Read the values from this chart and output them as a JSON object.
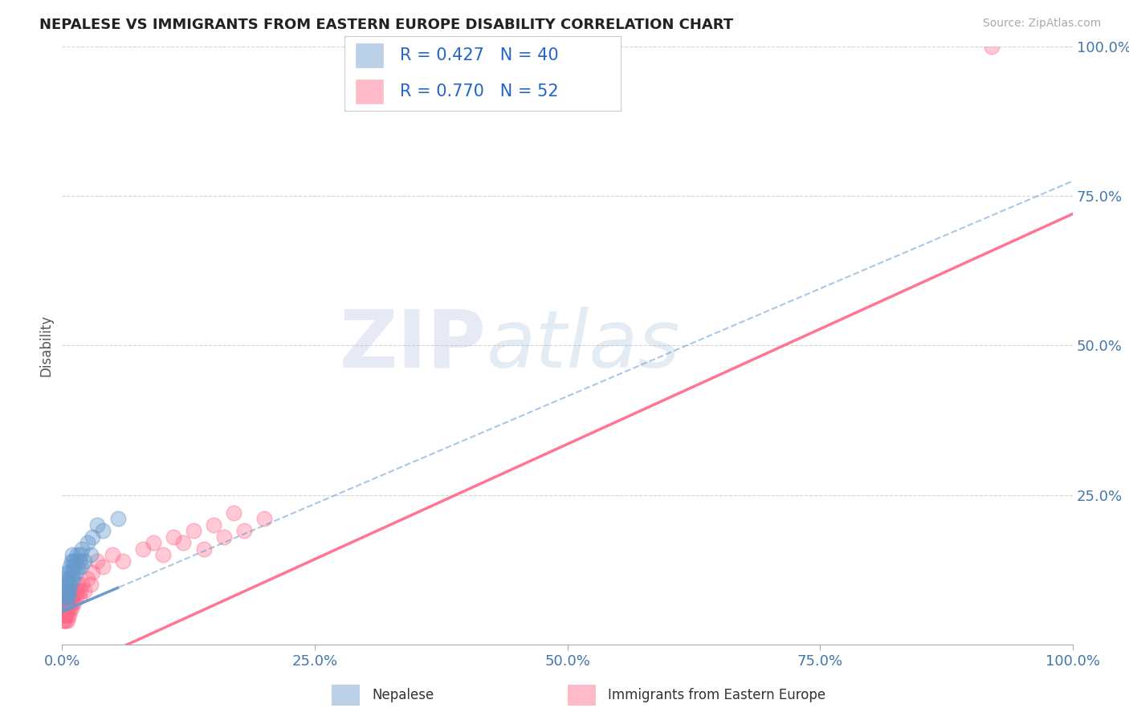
{
  "title": "NEPALESE VS IMMIGRANTS FROM EASTERN EUROPE DISABILITY CORRELATION CHART",
  "source": "Source: ZipAtlas.com",
  "ylabel": "Disability",
  "xlim": [
    0,
    1.0
  ],
  "ylim": [
    0,
    1.0
  ],
  "xticks": [
    0.0,
    0.25,
    0.5,
    0.75,
    1.0
  ],
  "xtick_labels": [
    "0.0%",
    "25.0%",
    "50.0%",
    "75.0%",
    "100.0%"
  ],
  "yticks": [
    0.25,
    0.5,
    0.75,
    1.0
  ],
  "ytick_labels": [
    "25.0%",
    "50.0%",
    "75.0%",
    "100.0%"
  ],
  "nepalese_color": "#6699CC",
  "eastern_europe_color": "#FF6688",
  "nepalese_R": 0.427,
  "nepalese_N": 40,
  "eastern_europe_R": 0.77,
  "eastern_europe_N": 52,
  "legend_label_nepalese": "Nepalese",
  "legend_label_eastern": "Immigrants from Eastern Europe",
  "watermark_zip": "ZIP",
  "watermark_atlas": "atlas",
  "background_color": "#ffffff",
  "grid_color": "#cccccc",
  "title_color": "#222222",
  "axis_tick_color": "#4477AA",
  "neo_line_slope": 0.72,
  "neo_line_intercept": 0.055,
  "east_line_slope": 0.77,
  "east_line_intercept": -0.05,
  "nepalese_x": [
    0.002,
    0.003,
    0.003,
    0.004,
    0.004,
    0.004,
    0.005,
    0.005,
    0.005,
    0.005,
    0.005,
    0.006,
    0.006,
    0.006,
    0.007,
    0.007,
    0.008,
    0.008,
    0.009,
    0.009,
    0.01,
    0.01,
    0.011,
    0.011,
    0.012,
    0.013,
    0.014,
    0.015,
    0.016,
    0.017,
    0.018,
    0.019,
    0.02,
    0.022,
    0.025,
    0.028,
    0.03,
    0.035,
    0.04,
    0.055
  ],
  "nepalese_y": [
    0.07,
    0.09,
    0.08,
    0.1,
    0.09,
    0.11,
    0.07,
    0.09,
    0.1,
    0.08,
    0.12,
    0.08,
    0.1,
    0.11,
    0.09,
    0.12,
    0.1,
    0.13,
    0.11,
    0.14,
    0.12,
    0.15,
    0.11,
    0.14,
    0.13,
    0.14,
    0.12,
    0.15,
    0.13,
    0.14,
    0.15,
    0.13,
    0.16,
    0.14,
    0.17,
    0.15,
    0.18,
    0.2,
    0.19,
    0.21
  ],
  "eastern_x": [
    0.001,
    0.002,
    0.002,
    0.003,
    0.003,
    0.003,
    0.004,
    0.004,
    0.004,
    0.005,
    0.005,
    0.005,
    0.006,
    0.006,
    0.007,
    0.007,
    0.008,
    0.008,
    0.009,
    0.009,
    0.01,
    0.01,
    0.011,
    0.012,
    0.013,
    0.014,
    0.015,
    0.016,
    0.017,
    0.018,
    0.02,
    0.022,
    0.025,
    0.028,
    0.03,
    0.035,
    0.04,
    0.05,
    0.06,
    0.08,
    0.09,
    0.1,
    0.11,
    0.12,
    0.13,
    0.14,
    0.15,
    0.16,
    0.17,
    0.18,
    0.2,
    0.92
  ],
  "eastern_y": [
    0.04,
    0.05,
    0.04,
    0.06,
    0.05,
    0.07,
    0.04,
    0.06,
    0.05,
    0.04,
    0.06,
    0.05,
    0.07,
    0.06,
    0.05,
    0.08,
    0.06,
    0.07,
    0.08,
    0.06,
    0.07,
    0.09,
    0.08,
    0.07,
    0.09,
    0.08,
    0.09,
    0.1,
    0.08,
    0.09,
    0.1,
    0.09,
    0.11,
    0.1,
    0.12,
    0.14,
    0.13,
    0.15,
    0.14,
    0.16,
    0.17,
    0.15,
    0.18,
    0.17,
    0.19,
    0.16,
    0.2,
    0.18,
    0.22,
    0.19,
    0.21,
    1.0
  ]
}
